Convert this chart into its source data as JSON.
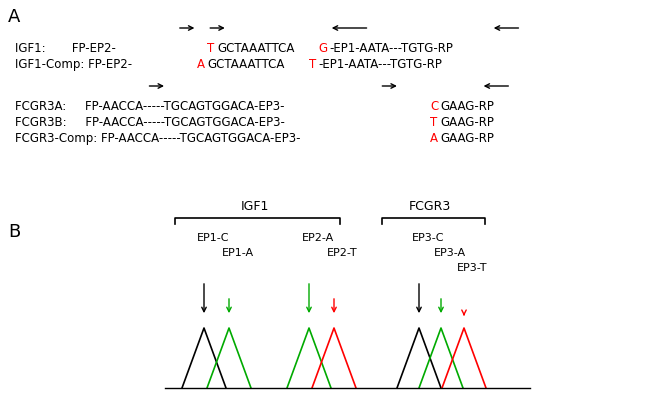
{
  "fig_w": 6.49,
  "fig_h": 3.98,
  "dpi": 100,
  "panel_A": {
    "label": "A",
    "igf1_segs": [
      [
        "IGF1:       FP-EP2-",
        "black"
      ],
      [
        "T",
        "red"
      ],
      [
        "GCTAAATTCA",
        "black"
      ],
      [
        "G",
        "red"
      ],
      [
        "-EP1-AATA---TGTG-RP",
        "black"
      ]
    ],
    "igf1comp_segs": [
      [
        "IGF1-Comp: FP-EP2-",
        "black"
      ],
      [
        "A",
        "red"
      ],
      [
        "GCTAAATTCA",
        "black"
      ],
      [
        "T",
        "red"
      ],
      [
        "-EP1-AATA---TGTG-RP",
        "black"
      ]
    ],
    "fcgr3a_segs": [
      [
        "FCGR3A:     FP-AACCA-----TGCAGTGGACA-EP3-",
        "black"
      ],
      [
        "C",
        "red"
      ],
      [
        "GAAG-RP",
        "black"
      ]
    ],
    "fcgr3b_segs": [
      [
        "FCGR3B:     FP-AACCA-----TGCAGTGGACA-EP3-",
        "black"
      ],
      [
        "T",
        "red"
      ],
      [
        "GAAG-RP",
        "black"
      ]
    ],
    "fcgr3comp_segs": [
      [
        "FCGR3-Comp: FP-AACCA-----TGCAGTGGACA-EP3-",
        "black"
      ],
      [
        "A",
        "red"
      ],
      [
        "GAAG-RP",
        "black"
      ]
    ],
    "fontsize": 8.5,
    "monofont": "Courier New"
  },
  "panel_B": {
    "label": "B",
    "igf1_label": "IGF1",
    "fcgr3_label": "FCGR3",
    "fontsize": 9,
    "monofont": "Courier New",
    "ep_fontsize": 8.0
  }
}
